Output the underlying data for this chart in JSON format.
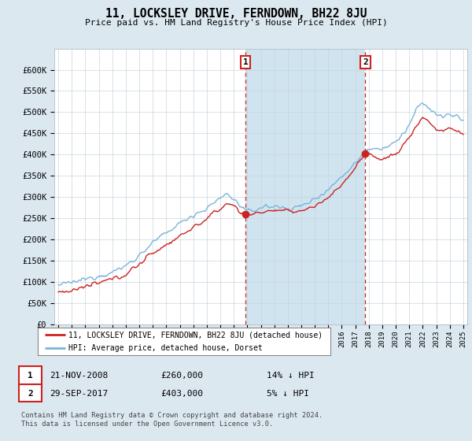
{
  "title": "11, LOCKSLEY DRIVE, FERNDOWN, BH22 8JU",
  "subtitle": "Price paid vs. HM Land Registry's House Price Index (HPI)",
  "yticks": [
    0,
    50000,
    100000,
    150000,
    200000,
    250000,
    300000,
    350000,
    400000,
    450000,
    500000,
    550000,
    600000
  ],
  "ytick_labels": [
    "£0",
    "£50K",
    "£100K",
    "£150K",
    "£200K",
    "£250K",
    "£300K",
    "£350K",
    "£400K",
    "£450K",
    "£500K",
    "£550K",
    "£600K"
  ],
  "transaction1_date": "21-NOV-2008",
  "transaction1_price": 260000,
  "transaction1_label": "14% ↓ HPI",
  "transaction1_year": 2008.88,
  "transaction2_date": "29-SEP-2017",
  "transaction2_price": 403000,
  "transaction2_label": "5% ↓ HPI",
  "transaction2_year": 2017.75,
  "legend_property": "11, LOCKSLEY DRIVE, FERNDOWN, BH22 8JU (detached house)",
  "legend_hpi": "HPI: Average price, detached house, Dorset",
  "footer1": "Contains HM Land Registry data © Crown copyright and database right 2024.",
  "footer2": "This data is licensed under the Open Government Licence v3.0.",
  "hpi_color": "#7ab4d8",
  "price_color": "#cc2222",
  "bg_color": "#dce8f0",
  "plot_bg": "#ffffff",
  "shade_color": "#d0e4f0",
  "annotation_box_color": "#cc2222",
  "x_start_year": 1995,
  "x_end_year": 2025,
  "ylim_max": 650000
}
